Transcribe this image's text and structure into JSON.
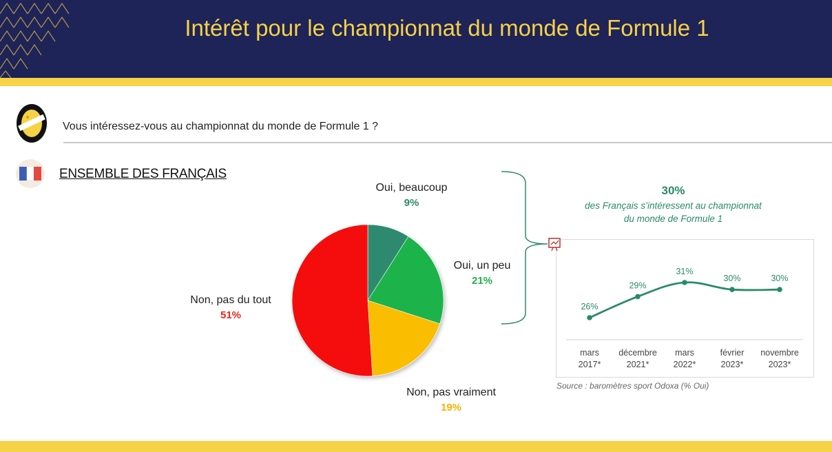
{
  "header": {
    "title": "Intérêt pour le championnat du monde de Formule 1"
  },
  "question": {
    "text": "Vous intéressez-vous au championnat du monde de Formule 1 ?"
  },
  "section": {
    "title": "ENSEMBLE DES FRANÇAIS"
  },
  "summary": {
    "value": "30%",
    "text_line1": "des Français s’intéressent au championnat",
    "text_line2": "du monde de Formule 1"
  },
  "source": "Source : baromètres sport Odoxa (% Oui)",
  "colors": {
    "navy": "#1e2358",
    "yellow": "#f6d246",
    "teal": "#2a8a68",
    "green": "#1db34b",
    "gold": "#fbbd00",
    "red": "#f50f0f",
    "dark_teal": "#2e8a6e"
  },
  "chart_data": [
    {
      "type": "pie",
      "slices": [
        {
          "label": "Oui, beaucoup",
          "value": 9,
          "display": "9%",
          "color": "#2e8a6e"
        },
        {
          "label": "Oui, un peu",
          "value": 21,
          "display": "21%",
          "color": "#1db34b"
        },
        {
          "label": "Non, pas vraiment",
          "value": 19,
          "display": "19%",
          "color": "#fbbd00"
        },
        {
          "label": "Non, pas du tout",
          "value": 51,
          "display": "51%",
          "color": "#f50f0f"
        }
      ]
    },
    {
      "type": "line",
      "categories": [
        {
          "line1": "mars",
          "line2": "2017*"
        },
        {
          "line1": "décembre",
          "line2": "2021*"
        },
        {
          "line1": "mars",
          "line2": "2022*"
        },
        {
          "line1": "février",
          "line2": "2023*"
        },
        {
          "line1": "novembre",
          "line2": "2023*"
        }
      ],
      "series": [
        {
          "values": [
            26,
            29,
            31,
            30,
            30
          ],
          "labels": [
            "26%",
            "29%",
            "31%",
            "30%",
            "30%"
          ],
          "color": "#2a8a68"
        }
      ]
    }
  ]
}
